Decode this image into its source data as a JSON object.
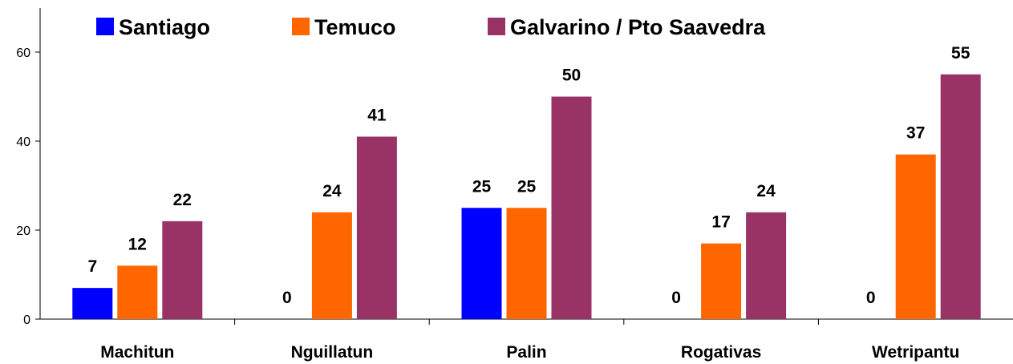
{
  "chart_data": {
    "type": "bar",
    "categories": [
      "Machitun",
      "Nguillatun",
      "Palin",
      "Rogativas",
      "Wetripantu"
    ],
    "series": [
      {
        "name": "Santiago",
        "color": "#0000ff",
        "values": [
          7,
          0,
          25,
          0,
          0
        ]
      },
      {
        "name": "Temuco",
        "color": "#ff6600",
        "values": [
          12,
          24,
          25,
          17,
          37
        ]
      },
      {
        "name": "Galvarino / Pto Saavedra",
        "color": "#993366",
        "values": [
          22,
          41,
          50,
          24,
          55
        ]
      }
    ],
    "yticks": [
      0,
      20,
      40,
      60
    ],
    "ylim": [
      0,
      60
    ],
    "legend_position": "top",
    "grid": false
  }
}
